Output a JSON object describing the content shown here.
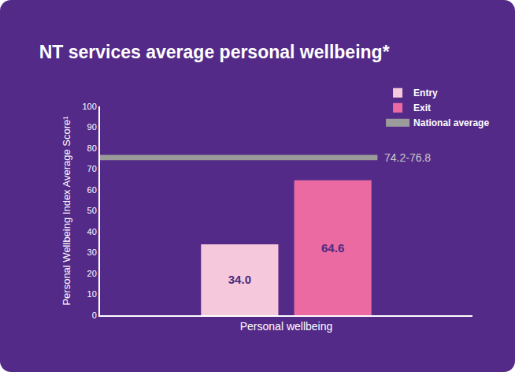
{
  "chart_data": {
    "type": "bar",
    "title": "NT services average personal wellbeing*",
    "y_label": "Personal Wellbeing Index Average Score¹",
    "categories": [
      "Personal wellbeing"
    ],
    "series": [
      {
        "name": "Entry",
        "color": "#f6c8dc",
        "values": [
          34.0
        ],
        "value_labels": [
          "34.0"
        ]
      },
      {
        "name": "Exit",
        "color": "#ec6aa2",
        "values": [
          64.6
        ]
      }
    ],
    "reference": {
      "name": "National average",
      "color": "#9b9b9b",
      "low": 74.2,
      "high": 76.8,
      "label": "74.2-76.8"
    },
    "ylim": [
      0,
      100
    ],
    "yticks": [
      0,
      10,
      20,
      30,
      40,
      50,
      60,
      70,
      80,
      90,
      100
    ],
    "grid": false,
    "data_labels": true,
    "legend": "upper right"
  }
}
